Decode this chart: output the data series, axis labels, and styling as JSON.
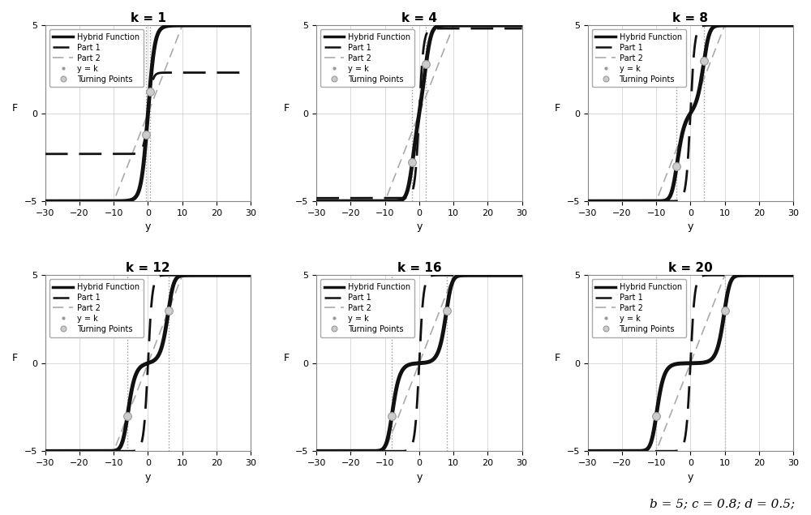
{
  "k_values": [
    1,
    4,
    8,
    12,
    16,
    20
  ],
  "b": 5,
  "c": 0.8,
  "d": 0.5,
  "y_range": [
    -30,
    30
  ],
  "F_range": [
    -5,
    5
  ],
  "xlabel": "y",
  "ylabel": "F",
  "caption": "b = 5; c = 0.8; d = 0.5;",
  "hybrid_color": "#111111",
  "part1_color": "#111111",
  "part2_color": "#aaaaaa",
  "yk_color": "#888888",
  "tp_color": "#cccccc",
  "grid_color": "#cccccc",
  "background": "#ffffff",
  "legend_hybrid": "Hybrid Function",
  "legend_part1": "Part 1",
  "legend_part2": "Part 2",
  "legend_yk": "y = k",
  "legend_tp": "Turning Points"
}
